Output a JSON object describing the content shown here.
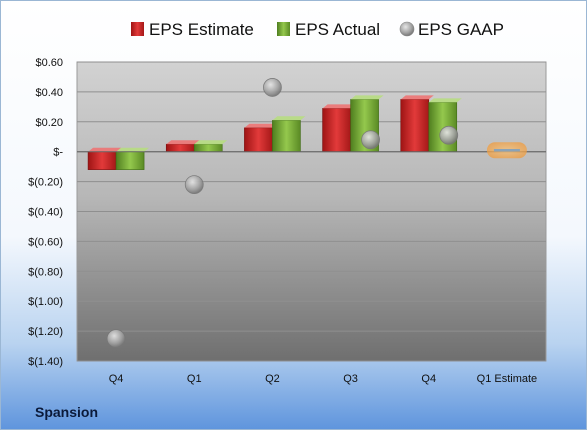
{
  "company": "Spansion",
  "chart_data": {
    "type": "bar",
    "categories": [
      "Q4",
      "Q1",
      "Q2",
      "Q3",
      "Q4",
      "Q1 Estimate"
    ],
    "ylim": [
      -1.4,
      0.6
    ],
    "yticks": [
      0.6,
      0.4,
      0.2,
      0,
      -0.2,
      -0.4,
      -0.6,
      -0.8,
      -1.0,
      -1.2,
      -1.4
    ],
    "ytick_labels": [
      "$0.60",
      "$0.40",
      "$0.20",
      "$-",
      "$(0.20)",
      "$(0.40)",
      "$(0.60)",
      "$(0.80)",
      "$(1.00)",
      "$(1.20)",
      "$(1.40)"
    ],
    "legend_position": "top",
    "series": [
      {
        "name": "EPS Estimate",
        "kind": "bar",
        "color": "#d42b2b",
        "values": [
          -0.12,
          0.05,
          0.16,
          0.29,
          0.35,
          null
        ]
      },
      {
        "name": "EPS Actual",
        "kind": "bar",
        "color": "#7db33a",
        "values": [
          -0.12,
          0.05,
          0.21,
          0.35,
          0.33,
          null
        ]
      },
      {
        "name": "EPS GAAP",
        "kind": "scatter",
        "color": "#a8a8a8",
        "values": [
          -1.25,
          -0.22,
          0.43,
          0.08,
          0.11,
          null
        ]
      }
    ],
    "estimate_marker": {
      "category": "Q1 Estimate",
      "value": 0.01,
      "color": "#f5a742"
    }
  }
}
